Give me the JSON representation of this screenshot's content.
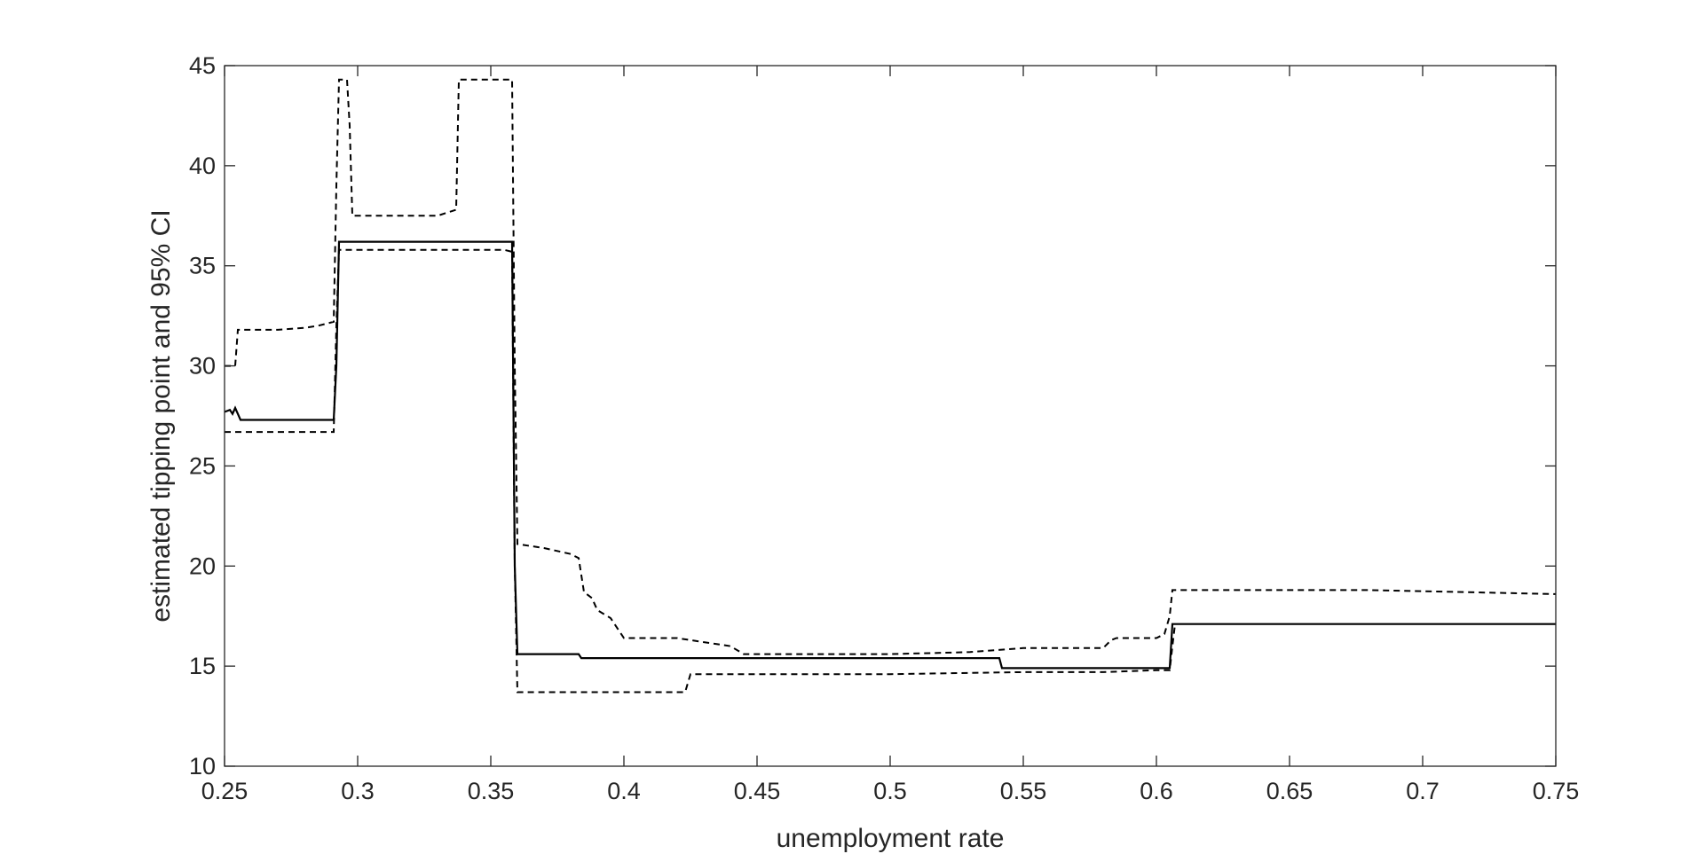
{
  "chart_data": {
    "type": "line",
    "title": "",
    "xlabel": "unemployment rate",
    "ylabel": "estimated tipping point and 95% CI",
    "xlim": [
      0.25,
      0.75
    ],
    "ylim": [
      10,
      45
    ],
    "xticks": [
      0.25,
      0.3,
      0.35,
      0.4,
      0.45,
      0.5,
      0.55,
      0.6,
      0.65,
      0.7,
      0.75
    ],
    "xtick_labels": [
      "0.25",
      "0.3",
      "0.35",
      "0.4",
      "0.45",
      "0.5",
      "0.55",
      "0.6",
      "0.65",
      "0.7",
      "0.75"
    ],
    "yticks": [
      10,
      15,
      20,
      25,
      30,
      35,
      40,
      45
    ],
    "ytick_labels": [
      "10",
      "15",
      "20",
      "25",
      "30",
      "35",
      "40",
      "45"
    ],
    "grid": false,
    "legend": "none",
    "series": [
      {
        "style": "solid",
        "role": "estimate",
        "x": [
          0.25,
          0.252,
          0.253,
          0.254,
          0.255,
          0.256,
          0.291,
          0.292,
          0.293,
          0.358,
          0.359,
          0.36,
          0.383,
          0.384,
          0.541,
          0.542,
          0.605,
          0.606,
          0.75
        ],
        "y": [
          27.7,
          27.8,
          27.6,
          27.9,
          27.6,
          27.3,
          27.3,
          30.0,
          36.2,
          36.2,
          20.0,
          15.6,
          15.6,
          15.4,
          15.4,
          14.9,
          14.9,
          17.1,
          17.1
        ]
      },
      {
        "style": "dashed",
        "role": "upper-ci",
        "x": [
          0.25,
          0.253,
          0.254,
          0.255,
          0.26,
          0.27,
          0.28,
          0.285,
          0.291,
          0.292,
          0.293,
          0.296,
          0.297,
          0.298,
          0.3,
          0.31,
          0.33,
          0.337,
          0.338,
          0.34,
          0.358,
          0.359,
          0.36,
          0.37,
          0.38,
          0.383,
          0.385,
          0.388,
          0.39,
          0.395,
          0.4,
          0.42,
          0.43,
          0.44,
          0.445,
          0.46,
          0.5,
          0.53,
          0.55,
          0.58,
          0.583,
          0.585,
          0.6,
          0.603,
          0.605,
          0.606,
          0.62,
          0.65,
          0.68,
          0.75
        ],
        "y": [
          30.0,
          30.0,
          30.0,
          31.8,
          31.8,
          31.8,
          31.9,
          32.0,
          32.2,
          39.0,
          44.3,
          44.3,
          42.0,
          37.5,
          37.5,
          37.5,
          37.5,
          37.8,
          44.3,
          44.3,
          44.3,
          30.0,
          21.1,
          20.9,
          20.6,
          20.4,
          18.7,
          18.4,
          17.8,
          17.4,
          16.4,
          16.4,
          16.2,
          16.0,
          15.6,
          15.6,
          15.6,
          15.7,
          15.9,
          15.9,
          16.3,
          16.4,
          16.4,
          16.6,
          17.5,
          18.8,
          18.8,
          18.8,
          18.8,
          18.6
        ]
      },
      {
        "style": "dashed",
        "role": "lower-ci",
        "x": [
          0.25,
          0.291,
          0.292,
          0.293,
          0.3,
          0.32,
          0.34,
          0.355,
          0.358,
          0.359,
          0.36,
          0.37,
          0.4,
          0.423,
          0.425,
          0.45,
          0.5,
          0.55,
          0.58,
          0.6,
          0.605,
          0.606,
          0.607
        ],
        "y": [
          26.7,
          26.7,
          32.0,
          35.8,
          35.8,
          35.8,
          35.8,
          35.8,
          35.7,
          20.0,
          13.7,
          13.7,
          13.7,
          13.7,
          14.6,
          14.6,
          14.6,
          14.7,
          14.7,
          14.8,
          14.8,
          16.0,
          17.1
        ]
      }
    ]
  }
}
